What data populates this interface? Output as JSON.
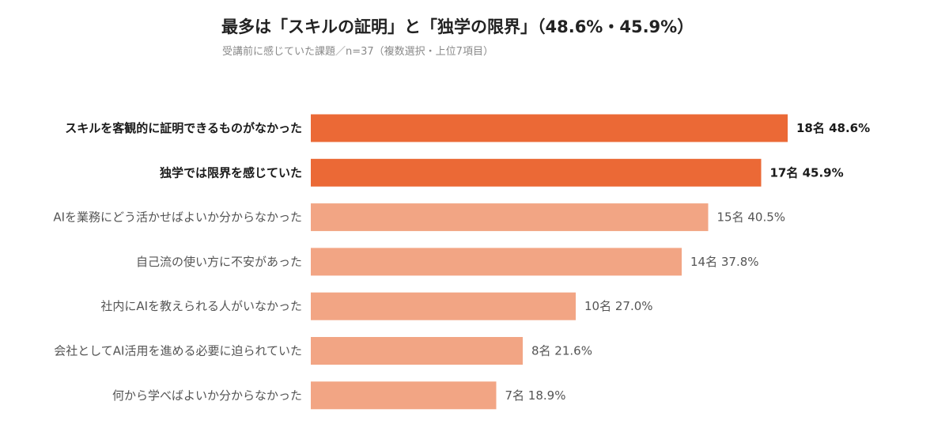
{
  "chart_data": {
    "type": "bar",
    "orientation": "horizontal",
    "title": "最多は「スキルの証明」と「独学の限界」（48.6%・45.9%）",
    "subtitle": "受講前に感じていた課題／n=37（複数選択・上位7項目）",
    "categories": [
      "スキルを客観的に証明できるものがなかった",
      "独学では限界を感じていた",
      "AIを業務にどう活かせばよいか分からなかった",
      "自己流の使い方に不安があった",
      "社内にAIを教えられる人がいなかった",
      "会社としてAI活用を進める必要に迫られていた",
      "何から学べばよいか分からなかった"
    ],
    "counts": [
      18,
      17,
      15,
      14,
      10,
      8,
      7
    ],
    "values": [
      48.6,
      45.9,
      40.5,
      37.8,
      27.0,
      21.6,
      18.9
    ],
    "value_labels": [
      "18名  48.6%",
      "17名  45.9%",
      "15名  40.5%",
      "14名  37.8%",
      "10名  27.0%",
      "8名  21.6%",
      "7名  18.9%"
    ],
    "highlighted": [
      true,
      true,
      false,
      false,
      false,
      false,
      false
    ],
    "colors": {
      "highlight": "#EB6936",
      "normal": "#F2A584"
    },
    "xlim": [
      0,
      48.6
    ],
    "grid": false,
    "legend": "none"
  }
}
